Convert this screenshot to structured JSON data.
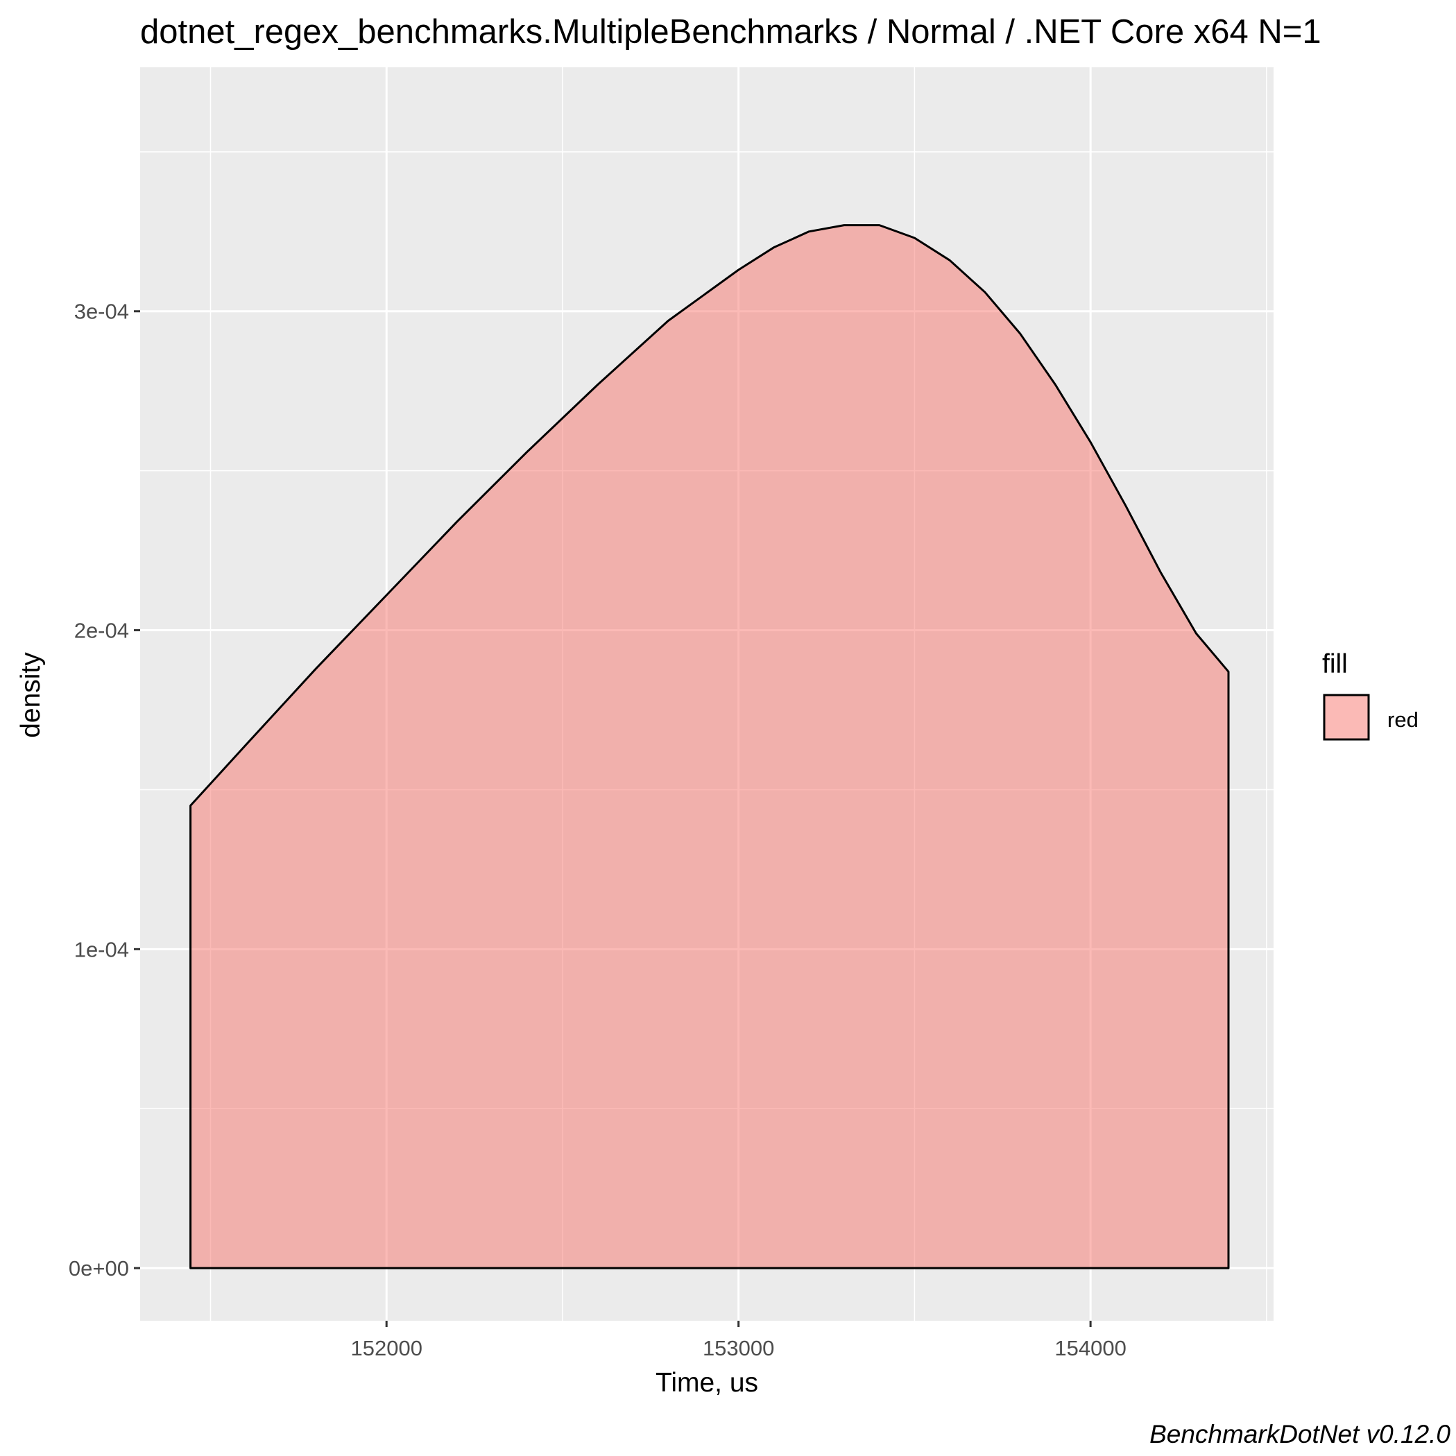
{
  "chart_data": {
    "type": "area",
    "title": "dotnet_regex_benchmarks.MultipleBenchmarks / Normal / .NET Core x64 N=1",
    "xlabel": "Time, us",
    "ylabel": "density",
    "caption": "BenchmarkDotNet v0.12.0",
    "xlim": [
      151300,
      154520
    ],
    "ylim": [
      -1.65e-05,
      0.0003765
    ],
    "x_ticks": [
      {
        "value": 152000,
        "label": "152000"
      },
      {
        "value": 153000,
        "label": "153000"
      },
      {
        "value": 154000,
        "label": "154000"
      }
    ],
    "y_ticks": [
      {
        "value": 0,
        "label": "0e+00"
      },
      {
        "value": 0.0001,
        "label": "1e-04"
      },
      {
        "value": 0.0002,
        "label": "2e-04"
      },
      {
        "value": 0.0003,
        "label": "3e-04"
      }
    ],
    "grid": true,
    "legend": {
      "title": "fill",
      "position": "right",
      "entries": [
        {
          "label": "red",
          "color": "#F8766D"
        }
      ]
    },
    "series": [
      {
        "fill": "#F8766D",
        "fill_opacity": 0.5,
        "stroke": "#000000",
        "x": [
          151443,
          151600,
          151800,
          152000,
          152200,
          152400,
          152600,
          152800,
          153000,
          153100,
          153200,
          153300,
          153400,
          153500,
          153600,
          153700,
          153800,
          153900,
          154000,
          154100,
          154200,
          154300,
          154392
        ],
        "y": [
          0.000145,
          0.000164,
          0.000188,
          0.000211,
          0.000234,
          0.000256,
          0.000277,
          0.000297,
          0.000313,
          0.00032,
          0.000325,
          0.000327,
          0.000327,
          0.000323,
          0.000316,
          0.000306,
          0.000293,
          0.000277,
          0.000259,
          0.000239,
          0.000218,
          0.000199,
          0.000187
        ]
      }
    ]
  },
  "colors": {
    "panel_background": "#EBEBEB",
    "grid_line": "#FFFFFF",
    "density_fill": "#F8766D",
    "outline": "#000000",
    "tick_text": "#4d4d4d"
  }
}
